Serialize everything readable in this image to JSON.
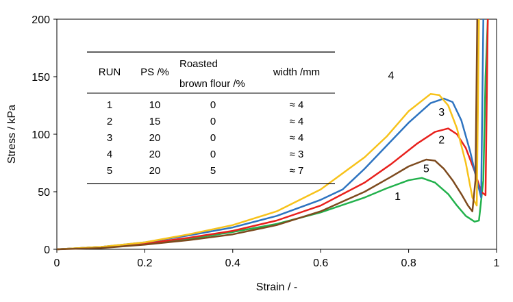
{
  "chart_data": {
    "type": "line",
    "xlabel": "Strain / -",
    "ylabel": "Stress / kPa",
    "xlim": [
      0,
      1
    ],
    "ylim": [
      0,
      200
    ],
    "x_ticks": [
      "0",
      "0.2",
      "0.4",
      "0.6",
      "0.8",
      "1"
    ],
    "y_ticks": [
      "0",
      "50",
      "100",
      "150",
      "200"
    ],
    "grid": false,
    "legend": "none",
    "series": [
      {
        "name": "1",
        "color": "#22b14c",
        "x": [
          0,
          0.1,
          0.2,
          0.3,
          0.4,
          0.5,
          0.6,
          0.7,
          0.75,
          0.8,
          0.83,
          0.86,
          0.89,
          0.91,
          0.93,
          0.95,
          0.96,
          0.97,
          0.975,
          0.98
        ],
        "y": [
          0,
          2,
          5,
          9,
          15,
          22,
          32,
          45,
          53,
          60,
          62,
          58,
          48,
          38,
          29,
          24,
          25,
          60,
          150,
          200
        ]
      },
      {
        "name": "2",
        "color": "#e8201c",
        "x": [
          0,
          0.1,
          0.2,
          0.3,
          0.4,
          0.5,
          0.6,
          0.7,
          0.76,
          0.82,
          0.86,
          0.89,
          0.91,
          0.93,
          0.95,
          0.965,
          0.975,
          0.98
        ],
        "y": [
          0,
          2,
          5,
          10,
          16,
          25,
          38,
          58,
          74,
          92,
          102,
          105,
          100,
          88,
          68,
          50,
          47,
          200
        ]
      },
      {
        "name": "3",
        "color": "#2d73c0",
        "x": [
          0,
          0.1,
          0.2,
          0.3,
          0.4,
          0.5,
          0.6,
          0.65,
          0.7,
          0.75,
          0.8,
          0.85,
          0.88,
          0.9,
          0.92,
          0.94,
          0.955,
          0.965,
          0.97
        ],
        "y": [
          0,
          2,
          6,
          12,
          19,
          29,
          43,
          52,
          70,
          90,
          110,
          127,
          131,
          128,
          112,
          85,
          60,
          45,
          200
        ]
      },
      {
        "name": "4",
        "color": "#f7c21a",
        "x": [
          0,
          0.1,
          0.2,
          0.3,
          0.4,
          0.5,
          0.6,
          0.7,
          0.75,
          0.8,
          0.85,
          0.87,
          0.89,
          0.91,
          0.93,
          0.945,
          0.955,
          0.96
        ],
        "y": [
          0,
          2,
          6,
          13,
          21,
          33,
          52,
          80,
          98,
          120,
          135,
          134,
          125,
          105,
          75,
          45,
          38,
          200
        ]
      },
      {
        "name": "5",
        "color": "#7d4a1e",
        "x": [
          0,
          0.1,
          0.2,
          0.3,
          0.4,
          0.5,
          0.6,
          0.7,
          0.76,
          0.8,
          0.84,
          0.86,
          0.88,
          0.9,
          0.92,
          0.935,
          0.945,
          0.952,
          0.956
        ],
        "y": [
          0,
          1,
          4,
          8,
          13,
          21,
          33,
          50,
          63,
          72,
          78,
          77,
          70,
          60,
          48,
          38,
          33,
          60,
          200
        ]
      }
    ],
    "curve_labels": [
      {
        "text": "4",
        "x": 0.76,
        "y": 148
      },
      {
        "text": "3",
        "x": 0.875,
        "y": 116
      },
      {
        "text": "2",
        "x": 0.875,
        "y": 92
      },
      {
        "text": "5",
        "x": 0.84,
        "y": 67
      },
      {
        "text": "1",
        "x": 0.775,
        "y": 43
      }
    ],
    "table": {
      "headers": [
        "RUN",
        "PS /%",
        "Roasted",
        "brown flour /%",
        "width /mm"
      ],
      "rows": [
        [
          "1",
          "10",
          "0",
          "≈ 4"
        ],
        [
          "2",
          "15",
          "0",
          "≈ 4"
        ],
        [
          "3",
          "20",
          "0",
          "≈ 4"
        ],
        [
          "4",
          "20",
          "0",
          "≈ 3"
        ],
        [
          "5",
          "20",
          "5",
          "≈ 7"
        ]
      ]
    }
  }
}
